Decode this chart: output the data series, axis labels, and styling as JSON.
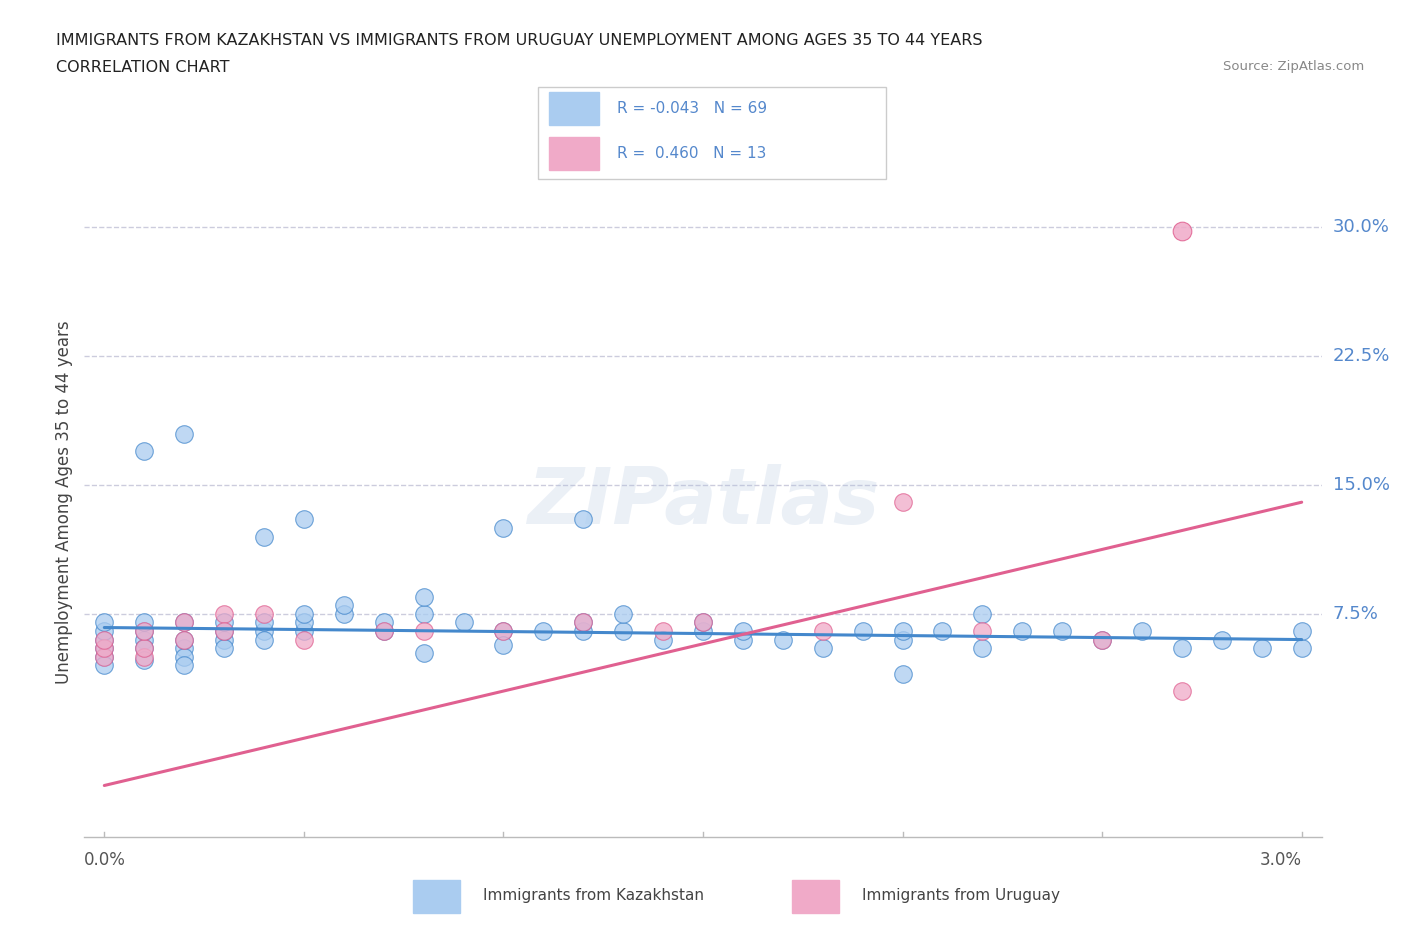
{
  "title_line1": "IMMIGRANTS FROM KAZAKHSTAN VS IMMIGRANTS FROM URUGUAY UNEMPLOYMENT AMONG AGES 35 TO 44 YEARS",
  "title_line2": "CORRELATION CHART",
  "source": "Source: ZipAtlas.com",
  "ylabel": "Unemployment Among Ages 35 to 44 years",
  "color_kaz": "#aaccf0",
  "color_uru": "#f0aac8",
  "color_kaz_line": "#4488cc",
  "color_uru_line": "#e06090",
  "color_ytick": "#5588cc",
  "color_grid": "#ccccdd",
  "xlim": [
    -0.0005,
    0.0305
  ],
  "ylim": [
    -0.055,
    0.335
  ],
  "ytick_vals": [
    0.075,
    0.15,
    0.225,
    0.3
  ],
  "ytick_labels": [
    "7.5%",
    "15.0%",
    "22.5%",
    "30.0%"
  ],
  "kaz_x": [
    0.0,
    0.0,
    0.0,
    0.0,
    0.0,
    0.0,
    0.001,
    0.001,
    0.001,
    0.001,
    0.001,
    0.002,
    0.002,
    0.002,
    0.002,
    0.002,
    0.003,
    0.003,
    0.003,
    0.003,
    0.004,
    0.004,
    0.004,
    0.005,
    0.005,
    0.005,
    0.006,
    0.006,
    0.007,
    0.007,
    0.008,
    0.008,
    0.008,
    0.009,
    0.01,
    0.01,
    0.011,
    0.012,
    0.012,
    0.013,
    0.013,
    0.014,
    0.015,
    0.015,
    0.016,
    0.017,
    0.018,
    0.019,
    0.02,
    0.02,
    0.021,
    0.022,
    0.022,
    0.023,
    0.024,
    0.025,
    0.026,
    0.027,
    0.028,
    0.029,
    0.03,
    0.03,
    0.004,
    0.005,
    0.01,
    0.002,
    0.001,
    0.012,
    0.02,
    0.016
  ],
  "kaz_y": [
    0.055,
    0.06,
    0.065,
    0.05,
    0.045,
    0.07,
    0.06,
    0.055,
    0.065,
    0.07,
    0.048,
    0.055,
    0.05,
    0.06,
    0.07,
    0.045,
    0.06,
    0.055,
    0.065,
    0.07,
    0.065,
    0.07,
    0.06,
    0.065,
    0.07,
    0.075,
    0.075,
    0.08,
    0.065,
    0.07,
    0.075,
    0.085,
    0.052,
    0.07,
    0.065,
    0.057,
    0.065,
    0.065,
    0.07,
    0.065,
    0.075,
    0.06,
    0.065,
    0.07,
    0.06,
    0.06,
    0.055,
    0.065,
    0.06,
    0.065,
    0.065,
    0.055,
    0.075,
    0.065,
    0.065,
    0.06,
    0.065,
    0.055,
    0.06,
    0.055,
    0.055,
    0.065,
    0.12,
    0.13,
    0.125,
    0.18,
    0.17,
    0.13,
    0.04,
    0.065
  ],
  "uru_x": [
    0.0,
    0.0,
    0.0,
    0.001,
    0.001,
    0.001,
    0.002,
    0.002,
    0.003,
    0.003,
    0.004,
    0.005,
    0.007,
    0.008,
    0.01,
    0.012,
    0.014,
    0.015,
    0.018,
    0.02,
    0.022,
    0.025,
    0.027
  ],
  "uru_y": [
    0.05,
    0.055,
    0.06,
    0.05,
    0.055,
    0.065,
    0.07,
    0.06,
    0.075,
    0.065,
    0.075,
    0.06,
    0.065,
    0.065,
    0.065,
    0.07,
    0.065,
    0.07,
    0.065,
    0.14,
    0.065,
    0.06,
    0.03
  ],
  "uru_outlier_x": [
    0.027
  ],
  "uru_outlier_y": [
    0.298
  ],
  "kaz_line_x": [
    0.0,
    0.03
  ],
  "kaz_line_y": [
    0.067,
    0.06
  ],
  "uru_line_x": [
    0.0,
    0.03
  ],
  "uru_line_y": [
    -0.025,
    0.14
  ]
}
